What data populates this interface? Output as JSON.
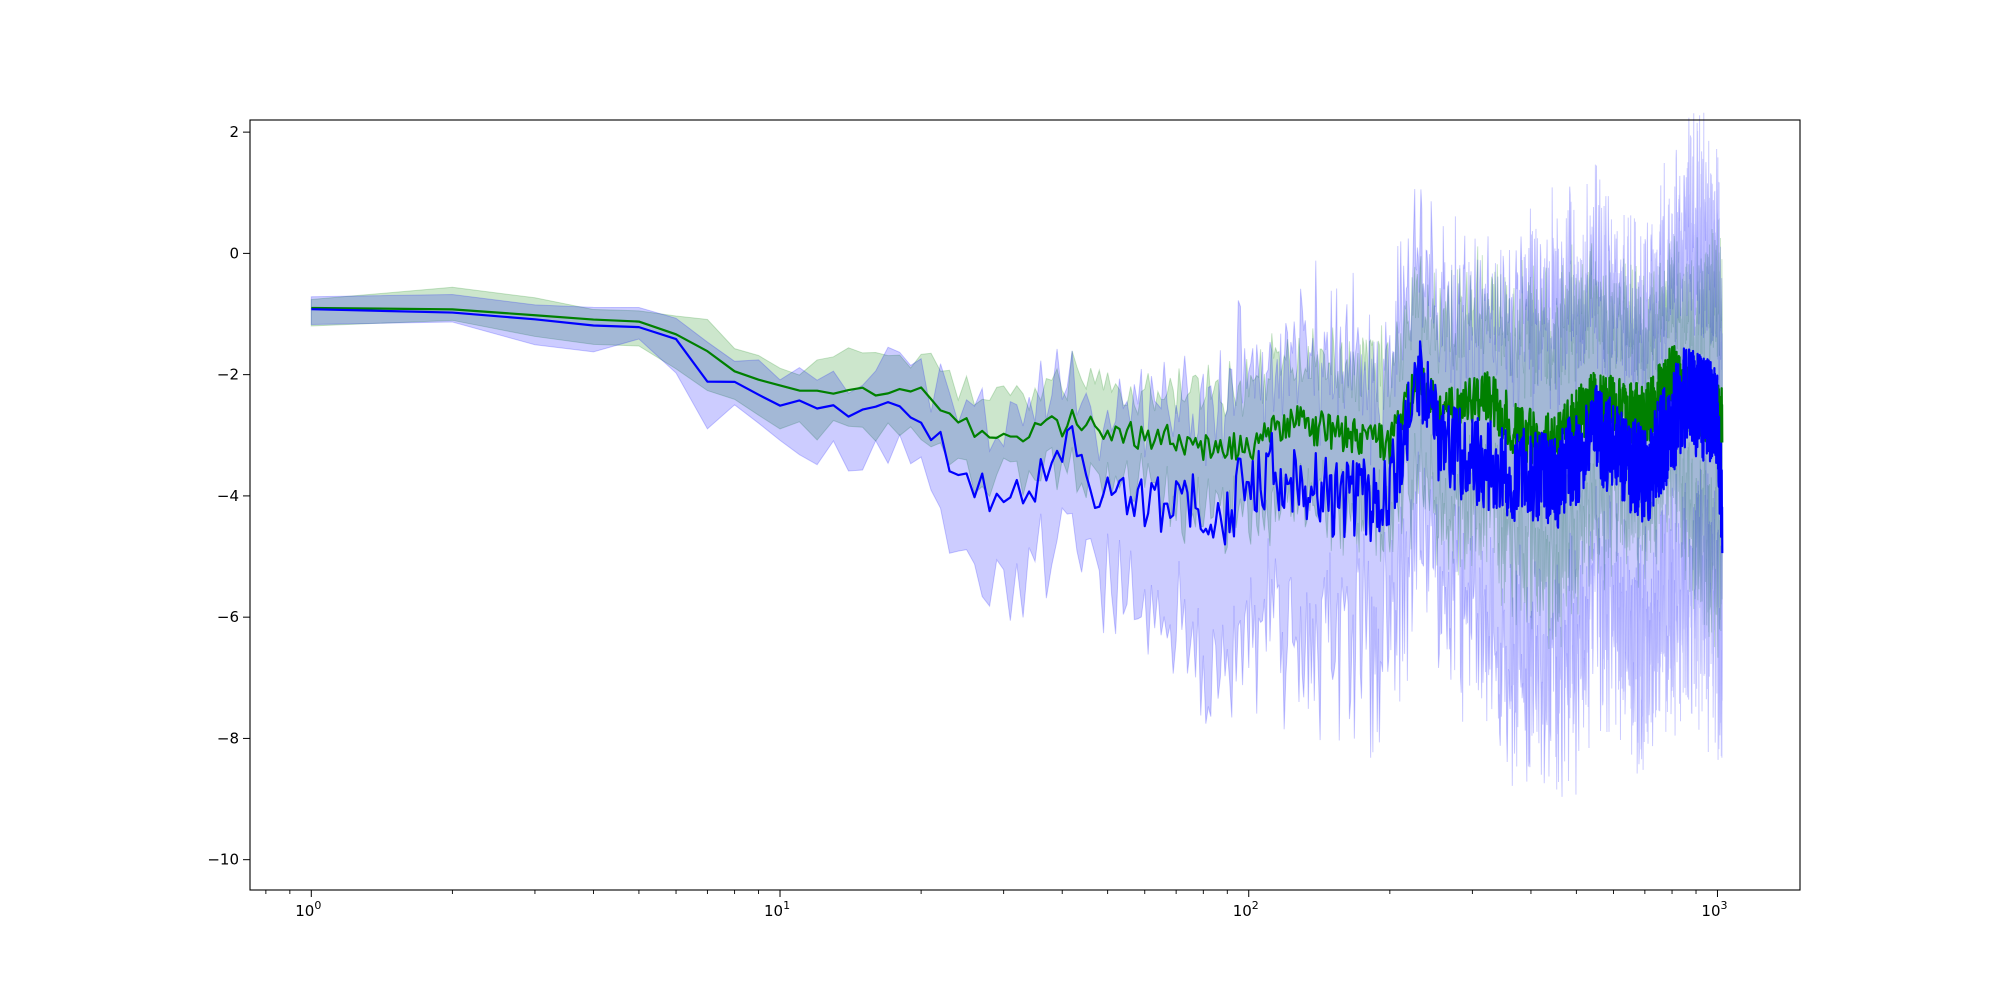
{
  "chart_data": {
    "type": "line",
    "title": "",
    "xlabel": "",
    "ylabel": "",
    "xscale": "log",
    "xlim": [
      0.74,
      1500
    ],
    "ylim": [
      -10.5,
      2.2
    ],
    "x_ticks": [
      {
        "value": 1,
        "base": "10",
        "exp": "0"
      },
      {
        "value": 10,
        "base": "10",
        "exp": "1"
      },
      {
        "value": 100,
        "base": "10",
        "exp": "2"
      },
      {
        "value": 1000,
        "base": "10",
        "exp": "3"
      }
    ],
    "y_ticks": [
      {
        "value": 2,
        "label": "2"
      },
      {
        "value": 0,
        "label": "0"
      },
      {
        "value": -2,
        "label": "−2"
      },
      {
        "value": -4,
        "label": "−4"
      },
      {
        "value": -6,
        "label": "−6"
      },
      {
        "value": -8,
        "label": "−8"
      },
      {
        "value": -10,
        "label": "−10"
      }
    ],
    "grid": false,
    "legend": "none",
    "x_max": 1024,
    "series": [
      {
        "color": "#008000",
        "band_color": "#008000",
        "band_opacity": 0.2,
        "anchors": [
          [
            1,
            -0.9
          ],
          [
            2,
            -0.93
          ],
          [
            3,
            -1.02
          ],
          [
            4,
            -1.12
          ],
          [
            5,
            -1.18
          ],
          [
            6,
            -1.33
          ],
          [
            7,
            -1.6
          ],
          [
            8,
            -1.97
          ],
          [
            10,
            -2.12
          ],
          [
            11,
            -2.23
          ],
          [
            14,
            -2.22
          ],
          [
            17,
            -2.3
          ],
          [
            20,
            -2.25
          ],
          [
            22,
            -2.5
          ],
          [
            24,
            -2.7
          ],
          [
            26,
            -2.95
          ],
          [
            28,
            -3.1
          ],
          [
            32,
            -3.05
          ],
          [
            40,
            -2.8
          ],
          [
            43,
            -2.75
          ],
          [
            50,
            -2.9
          ],
          [
            60,
            -3.0
          ],
          [
            80,
            -3.2
          ],
          [
            100,
            -3.2
          ],
          [
            120,
            -2.75
          ],
          [
            150,
            -2.95
          ],
          [
            200,
            -3.2
          ],
          [
            230,
            -2.05
          ],
          [
            260,
            -2.7
          ],
          [
            320,
            -2.3
          ],
          [
            380,
            -3.0
          ],
          [
            450,
            -3.1
          ],
          [
            550,
            -2.4
          ],
          [
            700,
            -2.7
          ],
          [
            800,
            -2.0
          ],
          [
            900,
            -2.6
          ],
          [
            1024,
            -2.7
          ]
        ],
        "band_anchors": [
          [
            1,
            0.3
          ],
          [
            5,
            0.35
          ],
          [
            7,
            0.45
          ],
          [
            10,
            0.55
          ],
          [
            20,
            0.65
          ],
          [
            40,
            0.8
          ],
          [
            70,
            1.0
          ],
          [
            100,
            1.2
          ],
          [
            200,
            1.4
          ],
          [
            350,
            2.0
          ],
          [
            450,
            2.2
          ],
          [
            600,
            1.8
          ],
          [
            800,
            1.6
          ],
          [
            1000,
            2.5
          ]
        ],
        "noise": [
          [
            1,
            0.0
          ],
          [
            20,
            0.05
          ],
          [
            40,
            0.1
          ],
          [
            80,
            0.12
          ],
          [
            150,
            0.14
          ],
          [
            300,
            0.2
          ],
          [
            1000,
            0.25
          ]
        ]
      },
      {
        "color": "#0000ff",
        "band_color": "#0000ff",
        "band_opacity": 0.2,
        "anchors": [
          [
            1,
            -0.92
          ],
          [
            2,
            -0.97
          ],
          [
            3,
            -1.08
          ],
          [
            4,
            -1.18
          ],
          [
            5,
            -1.28
          ],
          [
            6,
            -1.43
          ],
          [
            7,
            -2.1
          ],
          [
            8,
            -2.2
          ],
          [
            10,
            -2.45
          ],
          [
            11,
            -2.5
          ],
          [
            12,
            -2.55
          ],
          [
            13,
            -2.52
          ],
          [
            14,
            -2.62
          ],
          [
            16,
            -2.52
          ],
          [
            18,
            -2.62
          ],
          [
            20,
            -2.72
          ],
          [
            22,
            -3.1
          ],
          [
            24,
            -3.6
          ],
          [
            26,
            -3.8
          ],
          [
            28,
            -4.0
          ],
          [
            30,
            -3.9
          ],
          [
            35,
            -3.75
          ],
          [
            40,
            -3.6
          ],
          [
            42,
            -3.0
          ],
          [
            45,
            -3.9
          ],
          [
            55,
            -4.05
          ],
          [
            70,
            -4.2
          ],
          [
            90,
            -4.2
          ],
          [
            110,
            -3.5
          ],
          [
            130,
            -3.7
          ],
          [
            160,
            -4.1
          ],
          [
            200,
            -4.0
          ],
          [
            230,
            -2.1
          ],
          [
            260,
            -3.2
          ],
          [
            300,
            -3.4
          ],
          [
            350,
            -3.6
          ],
          [
            450,
            -3.8
          ],
          [
            550,
            -3.0
          ],
          [
            700,
            -3.7
          ],
          [
            850,
            -2.4
          ],
          [
            1000,
            -2.7
          ],
          [
            1024,
            -4.5
          ]
        ],
        "band_anchors": [
          [
            1,
            0.25
          ],
          [
            5,
            0.35
          ],
          [
            7,
            0.55
          ],
          [
            10,
            0.6
          ],
          [
            15,
            0.75
          ],
          [
            22,
            1.0
          ],
          [
            28,
            1.5
          ],
          [
            40,
            1.4
          ],
          [
            60,
            1.9
          ],
          [
            90,
            2.4
          ],
          [
            150,
            2.7
          ],
          [
            250,
            2.5
          ],
          [
            350,
            3.0
          ],
          [
            450,
            3.5
          ],
          [
            600,
            3.0
          ],
          [
            800,
            3.2
          ],
          [
            1000,
            3.5
          ]
        ],
        "noise": [
          [
            1,
            0.0
          ],
          [
            15,
            0.05
          ],
          [
            25,
            0.12
          ],
          [
            50,
            0.2
          ],
          [
            100,
            0.3
          ],
          [
            300,
            0.35
          ],
          [
            1000,
            0.4
          ]
        ]
      }
    ]
  }
}
